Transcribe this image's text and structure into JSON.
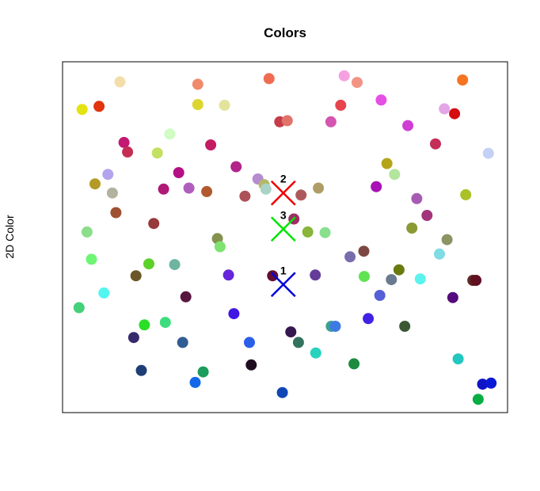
{
  "chart_data": {
    "type": "scatter",
    "title": "Colors",
    "xlabel": "",
    "ylabel": "2D Color",
    "xlim": [
      0,
      100
    ],
    "ylim": [
      0,
      100
    ],
    "grid": false,
    "legend": "none",
    "point_size": 7,
    "points": [
      {
        "x": 4.4,
        "y": 86.4,
        "color": "#e3e312"
      },
      {
        "x": 8.2,
        "y": 87.3,
        "color": "#e1340f"
      },
      {
        "x": 12.9,
        "y": 94.3,
        "color": "#f3deaa"
      },
      {
        "x": 30.4,
        "y": 93.6,
        "color": "#f08a6c"
      },
      {
        "x": 46.4,
        "y": 95.2,
        "color": "#ef6c52"
      },
      {
        "x": 63.3,
        "y": 96.0,
        "color": "#f6a0e2"
      },
      {
        "x": 66.2,
        "y": 94.1,
        "color": "#f29384"
      },
      {
        "x": 89.9,
        "y": 94.8,
        "color": "#f47421"
      },
      {
        "x": 30.4,
        "y": 87.8,
        "color": "#dcd52e"
      },
      {
        "x": 36.4,
        "y": 87.6,
        "color": "#e3e49b"
      },
      {
        "x": 62.5,
        "y": 87.6,
        "color": "#e6434d"
      },
      {
        "x": 71.6,
        "y": 89.1,
        "color": "#e44fe6"
      },
      {
        "x": 85.8,
        "y": 86.6,
        "color": "#e4a5e6"
      },
      {
        "x": 88.1,
        "y": 85.2,
        "color": "#d50c12"
      },
      {
        "x": 48.8,
        "y": 82.9,
        "color": "#c43d48"
      },
      {
        "x": 50.5,
        "y": 83.2,
        "color": "#e0736a"
      },
      {
        "x": 60.3,
        "y": 82.9,
        "color": "#d355b0"
      },
      {
        "x": 77.6,
        "y": 81.8,
        "color": "#cf3dd4"
      },
      {
        "x": 13.8,
        "y": 77.0,
        "color": "#c31972"
      },
      {
        "x": 14.6,
        "y": 74.3,
        "color": "#c42d54"
      },
      {
        "x": 21.3,
        "y": 74.0,
        "color": "#c4e060"
      },
      {
        "x": 24.1,
        "y": 79.4,
        "color": "#cffdc4"
      },
      {
        "x": 33.3,
        "y": 76.3,
        "color": "#c31c62"
      },
      {
        "x": 83.8,
        "y": 76.6,
        "color": "#c42f57"
      },
      {
        "x": 95.7,
        "y": 73.9,
        "color": "#c4d0f5"
      },
      {
        "x": 10.2,
        "y": 67.9,
        "color": "#b4a4ee"
      },
      {
        "x": 7.3,
        "y": 65.2,
        "color": "#b39b25"
      },
      {
        "x": 11.2,
        "y": 62.6,
        "color": "#b2b29e"
      },
      {
        "x": 22.7,
        "y": 63.7,
        "color": "#b01876"
      },
      {
        "x": 26.1,
        "y": 68.4,
        "color": "#b40f84"
      },
      {
        "x": 28.4,
        "y": 64.0,
        "color": "#b05ebe"
      },
      {
        "x": 32.4,
        "y": 63.0,
        "color": "#b1592f"
      },
      {
        "x": 39.0,
        "y": 70.1,
        "color": "#b2248a"
      },
      {
        "x": 41.0,
        "y": 61.7,
        "color": "#ad5057"
      },
      {
        "x": 43.9,
        "y": 66.6,
        "color": "#b68bd0"
      },
      {
        "x": 45.3,
        "y": 65.0,
        "color": "#b4b86b"
      },
      {
        "x": 45.7,
        "y": 63.7,
        "color": "#aad2c7"
      },
      {
        "x": 53.6,
        "y": 62.0,
        "color": "#ad595b"
      },
      {
        "x": 57.5,
        "y": 64.0,
        "color": "#ae9e65"
      },
      {
        "x": 70.5,
        "y": 64.4,
        "color": "#a910b5"
      },
      {
        "x": 72.9,
        "y": 71.0,
        "color": "#b5a417"
      },
      {
        "x": 74.6,
        "y": 67.9,
        "color": "#b3e59e"
      },
      {
        "x": 79.6,
        "y": 61.0,
        "color": "#a65cb2"
      },
      {
        "x": 81.9,
        "y": 56.2,
        "color": "#a1347a"
      },
      {
        "x": 90.6,
        "y": 62.1,
        "color": "#abc127"
      },
      {
        "x": 12.0,
        "y": 57.0,
        "color": "#9f5030"
      },
      {
        "x": 20.5,
        "y": 53.9,
        "color": "#98393b"
      },
      {
        "x": 5.5,
        "y": 51.5,
        "color": "#8bde8a"
      },
      {
        "x": 52.0,
        "y": 55.2,
        "color": "#9d2f63"
      },
      {
        "x": 55.1,
        "y": 51.5,
        "color": "#88b53a"
      },
      {
        "x": 59.0,
        "y": 51.3,
        "color": "#88e08f"
      },
      {
        "x": 78.5,
        "y": 52.6,
        "color": "#8b9a33"
      },
      {
        "x": 86.4,
        "y": 49.3,
        "color": "#8b9462"
      },
      {
        "x": 34.8,
        "y": 49.6,
        "color": "#85914e"
      },
      {
        "x": 35.4,
        "y": 47.3,
        "color": "#7ee370"
      },
      {
        "x": 67.7,
        "y": 46.0,
        "color": "#7d4844"
      },
      {
        "x": 64.6,
        "y": 44.4,
        "color": "#7a6dac"
      },
      {
        "x": 84.7,
        "y": 45.2,
        "color": "#7fdbe4"
      },
      {
        "x": 6.5,
        "y": 43.7,
        "color": "#6ef574"
      },
      {
        "x": 19.4,
        "y": 42.4,
        "color": "#5cd129"
      },
      {
        "x": 25.2,
        "y": 42.2,
        "color": "#6eb5a1"
      },
      {
        "x": 16.5,
        "y": 39.0,
        "color": "#6b5627"
      },
      {
        "x": 37.3,
        "y": 39.2,
        "color": "#6626d9"
      },
      {
        "x": 47.2,
        "y": 39.0,
        "color": "#630d34"
      },
      {
        "x": 56.8,
        "y": 39.2,
        "color": "#663c9a"
      },
      {
        "x": 67.8,
        "y": 38.8,
        "color": "#5fe352"
      },
      {
        "x": 73.9,
        "y": 37.9,
        "color": "#6a7a90"
      },
      {
        "x": 75.6,
        "y": 40.7,
        "color": "#6a7a0f"
      },
      {
        "x": 80.4,
        "y": 38.1,
        "color": "#5cf3ee"
      },
      {
        "x": 92.2,
        "y": 37.7,
        "color": "#5c2922"
      },
      {
        "x": 92.9,
        "y": 37.7,
        "color": "#611021"
      },
      {
        "x": 3.7,
        "y": 29.9,
        "color": "#45d07a"
      },
      {
        "x": 9.3,
        "y": 34.1,
        "color": "#50f6ef"
      },
      {
        "x": 27.7,
        "y": 33.0,
        "color": "#58163f"
      },
      {
        "x": 71.3,
        "y": 33.4,
        "color": "#5660d6"
      },
      {
        "x": 87.7,
        "y": 32.8,
        "color": "#550b7c"
      },
      {
        "x": 18.4,
        "y": 25.0,
        "color": "#2bdf26"
      },
      {
        "x": 23.1,
        "y": 25.7,
        "color": "#3ddd7e"
      },
      {
        "x": 38.5,
        "y": 28.2,
        "color": "#4115e3"
      },
      {
        "x": 60.4,
        "y": 24.6,
        "color": "#3ba192"
      },
      {
        "x": 61.3,
        "y": 24.6,
        "color": "#3e7ae4"
      },
      {
        "x": 68.7,
        "y": 26.8,
        "color": "#3f22e6"
      },
      {
        "x": 76.9,
        "y": 24.6,
        "color": "#3b5835"
      },
      {
        "x": 16.0,
        "y": 21.4,
        "color": "#372b6d"
      },
      {
        "x": 27.0,
        "y": 20.0,
        "color": "#2f5d94"
      },
      {
        "x": 42.0,
        "y": 20.0,
        "color": "#2b5ee9"
      },
      {
        "x": 51.3,
        "y": 23.0,
        "color": "#34184f"
      },
      {
        "x": 53.0,
        "y": 20.0,
        "color": "#33725e"
      },
      {
        "x": 56.9,
        "y": 17.0,
        "color": "#27d3be"
      },
      {
        "x": 17.7,
        "y": 12.0,
        "color": "#1e3e75"
      },
      {
        "x": 31.6,
        "y": 11.6,
        "color": "#1b9d5b"
      },
      {
        "x": 42.4,
        "y": 13.6,
        "color": "#1f0d1f"
      },
      {
        "x": 65.5,
        "y": 13.9,
        "color": "#1c8a3f"
      },
      {
        "x": 88.9,
        "y": 15.3,
        "color": "#23c6c0"
      },
      {
        "x": 29.8,
        "y": 8.6,
        "color": "#1368ea"
      },
      {
        "x": 49.4,
        "y": 5.7,
        "color": "#1047b4"
      },
      {
        "x": 94.4,
        "y": 8.1,
        "color": "#0f14c7"
      },
      {
        "x": 96.3,
        "y": 8.4,
        "color": "#0a19d6"
      },
      {
        "x": 93.4,
        "y": 3.8,
        "color": "#08ae44"
      }
    ],
    "markers": [
      {
        "label": "1",
        "x": 49.6,
        "y": 36.5,
        "color": "#0000d8"
      },
      {
        "label": "2",
        "x": 49.6,
        "y": 62.6,
        "color": "#f00000"
      },
      {
        "label": "3",
        "x": 49.6,
        "y": 52.3,
        "color": "#00e600"
      }
    ]
  }
}
